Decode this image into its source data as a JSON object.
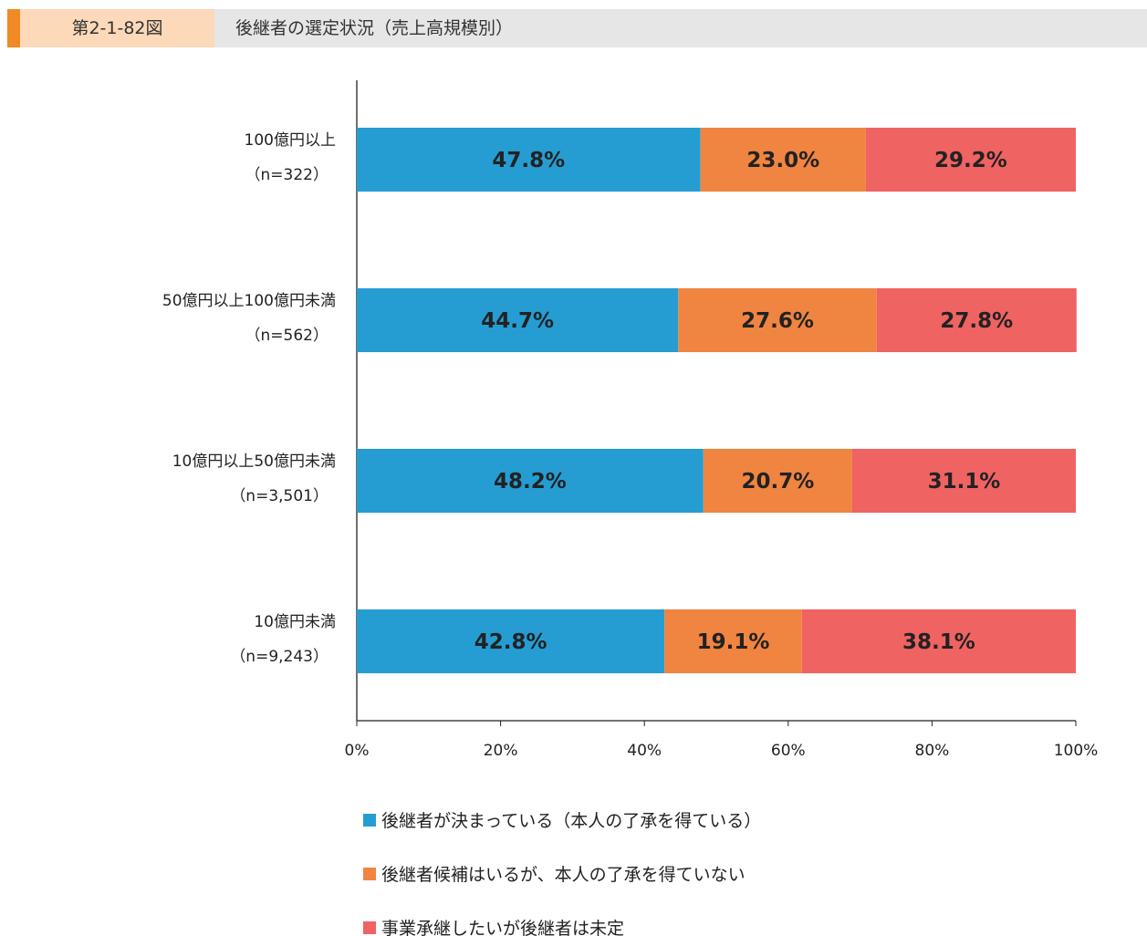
{
  "header": {
    "figure_number": "第2-1-82図",
    "title": "後継者の選定状況（売上高規模別）"
  },
  "colors": {
    "stripe": "#f08a24",
    "number_bg": "#fcd9b9",
    "header_bg": "#e6e6e6"
  },
  "chart_data": {
    "type": "bar",
    "orientation": "horizontal",
    "stacked": true,
    "percent_stacked": true,
    "title": "",
    "xlabel": "",
    "ylabel": "",
    "xlim": [
      0,
      100
    ],
    "x_ticks": [
      "0%",
      "20%",
      "40%",
      "60%",
      "80%",
      "100%"
    ],
    "grid": false,
    "legend_position": "bottom",
    "categories": [
      {
        "label": "100億円以上",
        "n": "（n=322）"
      },
      {
        "label": "50億円以上100億円未満",
        "n": "（n=562）"
      },
      {
        "label": "10億円以上50億円未満",
        "n": "（n=3,501）"
      },
      {
        "label": "10億円未満",
        "n": "（n=9,243）"
      }
    ],
    "series": [
      {
        "name": "後継者が決まっている（本人の了承を得ている）",
        "color": "#259dd3",
        "values": [
          47.8,
          44.7,
          48.2,
          42.8
        ]
      },
      {
        "name": "後継者候補はいるが、本人の了承を得ていない",
        "color": "#f08441",
        "values": [
          23.0,
          27.6,
          20.7,
          19.1
        ]
      },
      {
        "name": "事業承継したいが後継者は未定",
        "color": "#ef6363",
        "values": [
          29.2,
          27.8,
          31.1,
          38.1
        ]
      }
    ]
  }
}
